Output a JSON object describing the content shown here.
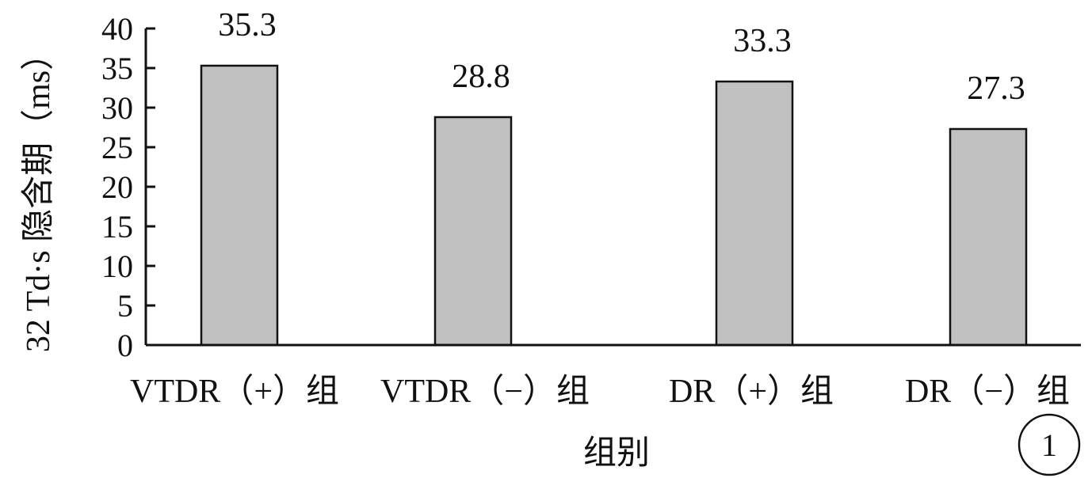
{
  "chart_data": {
    "type": "bar",
    "categories": [
      "VTDR（+）组",
      "VTDR（−）组",
      "DR（+）组",
      "DR（−）组"
    ],
    "values": [
      35.3,
      28.8,
      33.3,
      27.3
    ],
    "value_labels": [
      "35.3",
      "28.8",
      "33.3",
      "27.3"
    ],
    "title": "",
    "xlabel": "组别",
    "ylabel": "32 Td·s 隐含期（ms）",
    "ylim": [
      0,
      40
    ],
    "yticks": [
      0,
      5,
      10,
      15,
      20,
      25,
      30,
      35,
      40
    ],
    "grid": false,
    "legend": "none",
    "colors": {
      "bar_fill": "#c0c0c0",
      "bar_stroke": "#111111",
      "axis": "#111111"
    }
  },
  "figure_badge": "1"
}
